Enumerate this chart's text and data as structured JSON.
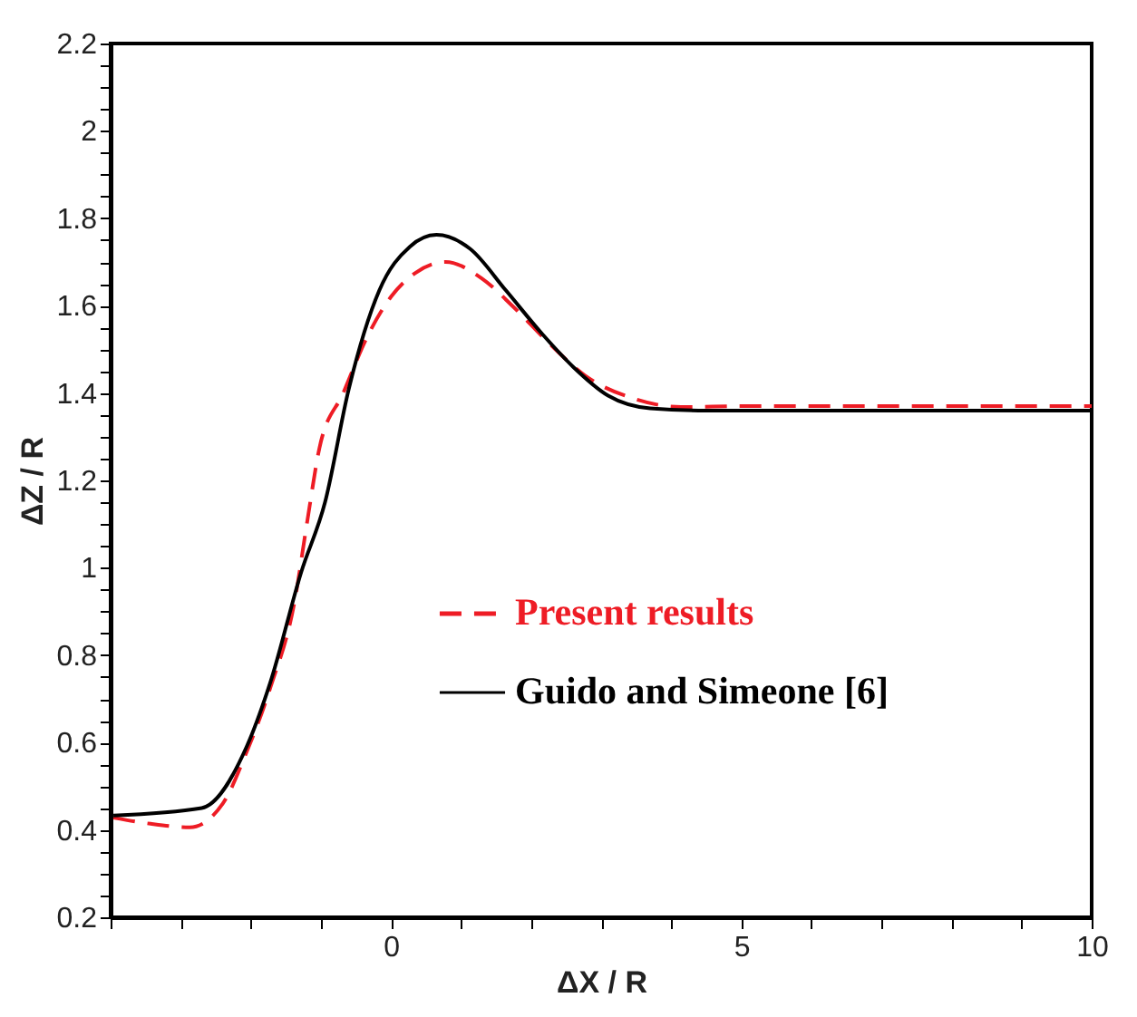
{
  "chart_data": {
    "type": "line",
    "xlabel": "ΔX / R",
    "ylabel": "ΔZ / R",
    "xlim": [
      -4,
      10
    ],
    "ylim": [
      0.2,
      2.2
    ],
    "xticks": [
      {
        "value": -4,
        "label": null
      },
      {
        "value": -3,
        "label": null
      },
      {
        "value": -2,
        "label": null
      },
      {
        "value": -1,
        "label": null
      },
      0,
      {
        "value": 1,
        "label": null
      },
      {
        "value": 2,
        "label": null
      },
      {
        "value": 3,
        "label": null
      },
      {
        "value": 4,
        "label": null
      },
      5,
      {
        "value": 6,
        "label": null
      },
      {
        "value": 7,
        "label": null
      },
      {
        "value": 8,
        "label": null
      },
      {
        "value": 9,
        "label": null
      },
      10
    ],
    "yticks": [
      0.2,
      {
        "value": 0.25,
        "label": null
      },
      {
        "value": 0.3,
        "label": null
      },
      {
        "value": 0.35,
        "label": null
      },
      0.4,
      {
        "value": 0.45,
        "label": null
      },
      {
        "value": 0.5,
        "label": null
      },
      {
        "value": 0.55,
        "label": null
      },
      0.6,
      {
        "value": 0.65,
        "label": null
      },
      {
        "value": 0.7,
        "label": null
      },
      {
        "value": 0.75,
        "label": null
      },
      0.8,
      {
        "value": 0.85,
        "label": null
      },
      {
        "value": 0.9,
        "label": null
      },
      {
        "value": 0.95,
        "label": null
      },
      1,
      {
        "value": 1.05,
        "label": null
      },
      {
        "value": 1.1,
        "label": null
      },
      {
        "value": 1.15,
        "label": null
      },
      1.2,
      {
        "value": 1.25,
        "label": null
      },
      {
        "value": 1.3,
        "label": null
      },
      {
        "value": 1.35,
        "label": null
      },
      1.4,
      {
        "value": 1.45,
        "label": null
      },
      {
        "value": 1.5,
        "label": null
      },
      {
        "value": 1.55,
        "label": null
      },
      1.6,
      {
        "value": 1.65,
        "label": null
      },
      {
        "value": 1.7,
        "label": null
      },
      {
        "value": 1.75,
        "label": null
      },
      1.8,
      {
        "value": 1.85,
        "label": null
      },
      {
        "value": 1.9,
        "label": null
      },
      {
        "value": 1.95,
        "label": null
      },
      2,
      {
        "value": 2.05,
        "label": null
      },
      {
        "value": 2.1,
        "label": null
      },
      {
        "value": 2.15,
        "label": null
      },
      2.2
    ],
    "grid": false,
    "legend": "right",
    "series": [
      {
        "name": "Present results",
        "color": "#ee1c25",
        "line_style": "dashed",
        "x": [
          -3.96,
          -3.43,
          -2.87,
          -2.4,
          -2.06,
          -1.72,
          -1.37,
          -1.2,
          -1.02,
          -0.68,
          -0.34,
          0,
          0.35,
          0.78,
          1.3,
          1.73,
          2.25,
          2.77,
          3.45,
          4.14,
          5,
          7,
          10
        ],
        "values": [
          0.428,
          0.414,
          0.406,
          0.46,
          0.578,
          0.726,
          0.927,
          1.1,
          1.274,
          1.4,
          1.528,
          1.62,
          1.675,
          1.7,
          1.662,
          1.6,
          1.515,
          1.44,
          1.388,
          1.368,
          1.37,
          1.37,
          1.37
        ]
      },
      {
        "name": "Guido and Simeone [6]",
        "color": "#000000",
        "line_style": "solid",
        "x": [
          -3.96,
          -2.7,
          -2.06,
          -1.72,
          -1.28,
          -0.94,
          -0.6,
          -0.165,
          0.27,
          0.65,
          1.13,
          1.64,
          2.16,
          2.6,
          3.1,
          3.7,
          4.5,
          7,
          10
        ],
        "values": [
          0.433,
          0.45,
          0.59,
          0.738,
          0.99,
          1.15,
          1.41,
          1.635,
          1.735,
          1.762,
          1.73,
          1.635,
          1.535,
          1.46,
          1.394,
          1.365,
          1.36,
          1.36,
          1.36
        ]
      }
    ]
  }
}
